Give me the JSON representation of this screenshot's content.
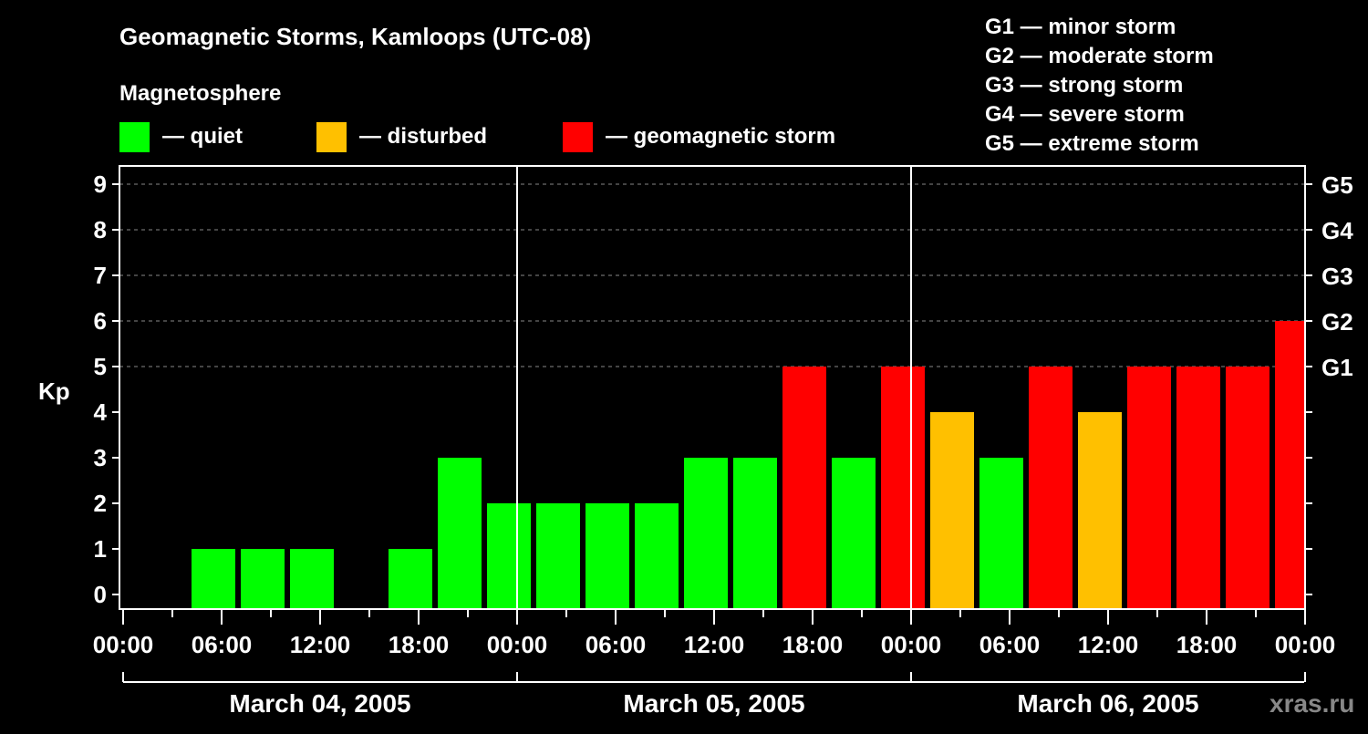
{
  "chart_data": {
    "type": "bar",
    "title": "Geomagnetic Storms, Kamloops (UTC-08)",
    "legend_title": "Magnetosphere",
    "legend": [
      {
        "label": "— quiet",
        "color": "#00ff00"
      },
      {
        "label": "— disturbed",
        "color": "#ffc000"
      },
      {
        "label": "— geomagnetic storm",
        "color": "#ff0000"
      }
    ],
    "scale_legend": [
      "G1 — minor storm",
      "G2 — moderate storm",
      "G3 — strong storm",
      "G4 — severe storm",
      "G5 — extreme storm"
    ],
    "ylabel": "Kp",
    "ylim": [
      0,
      9
    ],
    "yticks": [
      "0",
      "1",
      "2",
      "3",
      "4",
      "5",
      "6",
      "7",
      "8",
      "9"
    ],
    "right_ticks": [
      {
        "kp": 5,
        "label": "G1"
      },
      {
        "kp": 6,
        "label": "G2"
      },
      {
        "kp": 7,
        "label": "G3"
      },
      {
        "kp": 8,
        "label": "G4"
      },
      {
        "kp": 9,
        "label": "G5"
      }
    ],
    "xtick_labels": [
      "00:00",
      "06:00",
      "12:00",
      "18:00",
      "00:00",
      "06:00",
      "12:00",
      "18:00",
      "00:00",
      "06:00",
      "12:00",
      "18:00",
      "00:00"
    ],
    "days": [
      "March 04, 2005",
      "March 05, 2005",
      "March 06, 2005"
    ],
    "interval_hours": 3,
    "values": [
      null,
      1,
      1,
      1,
      null,
      1,
      3,
      2,
      2,
      2,
      2,
      3,
      3,
      5,
      3,
      5,
      4,
      3,
      5,
      4,
      5,
      5,
      5,
      6
    ],
    "colors": {
      "quiet": "#00ff00",
      "disturbed": "#ffc000",
      "storm": "#ff0000"
    },
    "grid": "dashed at Kp 5-9"
  },
  "watermark": "xras.ru"
}
